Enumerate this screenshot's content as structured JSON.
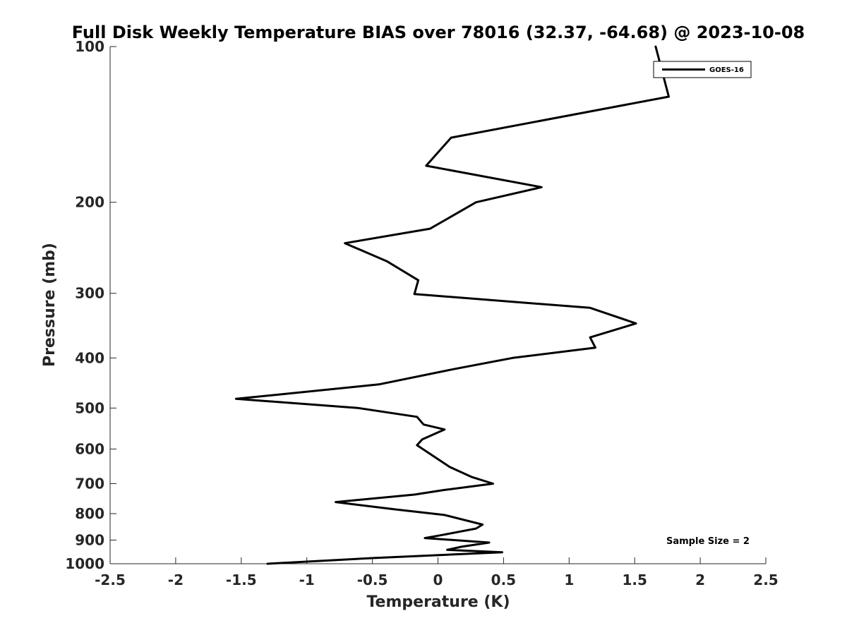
{
  "chart_data": {
    "type": "line",
    "title": "Full Disk Weekly Temperature BIAS over 78016 (32.37, -64.68) @ 2023-10-08",
    "xlabel": "Temperature (K)",
    "ylabel": "Pressure (mb)",
    "xlim": [
      -2.5,
      2.5
    ],
    "ylim": [
      1000,
      100
    ],
    "yscale": "log",
    "y_reversed": true,
    "x_ticks": [
      "-2.5",
      "-2",
      "-1.5",
      "-1",
      "-0.5",
      "0",
      "0.5",
      "1",
      "1.5",
      "2",
      "2.5"
    ],
    "x_tick_values": [
      -2.5,
      -2,
      -1.5,
      -1,
      -0.5,
      0,
      0.5,
      1,
      1.5,
      2,
      2.5
    ],
    "y_ticks": [
      "100",
      "200",
      "300",
      "400",
      "500",
      "600",
      "700",
      "800",
      "900",
      "1000"
    ],
    "y_tick_values": [
      100,
      200,
      300,
      400,
      500,
      600,
      700,
      800,
      900,
      1000
    ],
    "grid": false,
    "legend": {
      "position": "top-right"
    },
    "series": [
      {
        "name": "GOES-16",
        "color": "#000000",
        "points": [
          [
            1.66,
            100
          ],
          [
            1.76,
            125
          ],
          [
            0.1,
            150
          ],
          [
            -0.09,
            170
          ],
          [
            0.79,
            187
          ],
          [
            0.29,
            200
          ],
          [
            -0.06,
            225
          ],
          [
            -0.71,
            240
          ],
          [
            -0.39,
            260
          ],
          [
            -0.15,
            283
          ],
          [
            -0.18,
            301
          ],
          [
            1.16,
            320
          ],
          [
            1.51,
            343
          ],
          [
            1.16,
            365
          ],
          [
            1.2,
            382
          ],
          [
            0.57,
            400
          ],
          [
            0.13,
            420
          ],
          [
            -0.45,
            450
          ],
          [
            -1.54,
            480
          ],
          [
            -0.61,
            500
          ],
          [
            -0.16,
            520
          ],
          [
            -0.11,
            538
          ],
          [
            0.05,
            550
          ],
          [
            -0.12,
            575
          ],
          [
            -0.16,
            590
          ],
          [
            0.09,
            650
          ],
          [
            0.26,
            680
          ],
          [
            0.42,
            700
          ],
          [
            0.05,
            720
          ],
          [
            -0.18,
            735
          ],
          [
            -0.78,
            760
          ],
          [
            -0.33,
            785
          ],
          [
            0.05,
            805
          ],
          [
            0.34,
            840
          ],
          [
            0.29,
            855
          ],
          [
            0.03,
            880
          ],
          [
            -0.1,
            892
          ],
          [
            0.39,
            910
          ],
          [
            0.18,
            927
          ],
          [
            0.07,
            940
          ],
          [
            0.49,
            950
          ],
          [
            -0.49,
            975
          ],
          [
            -1.3,
            1000
          ]
        ]
      }
    ],
    "annotations": [
      "Sample Size = 2"
    ]
  }
}
